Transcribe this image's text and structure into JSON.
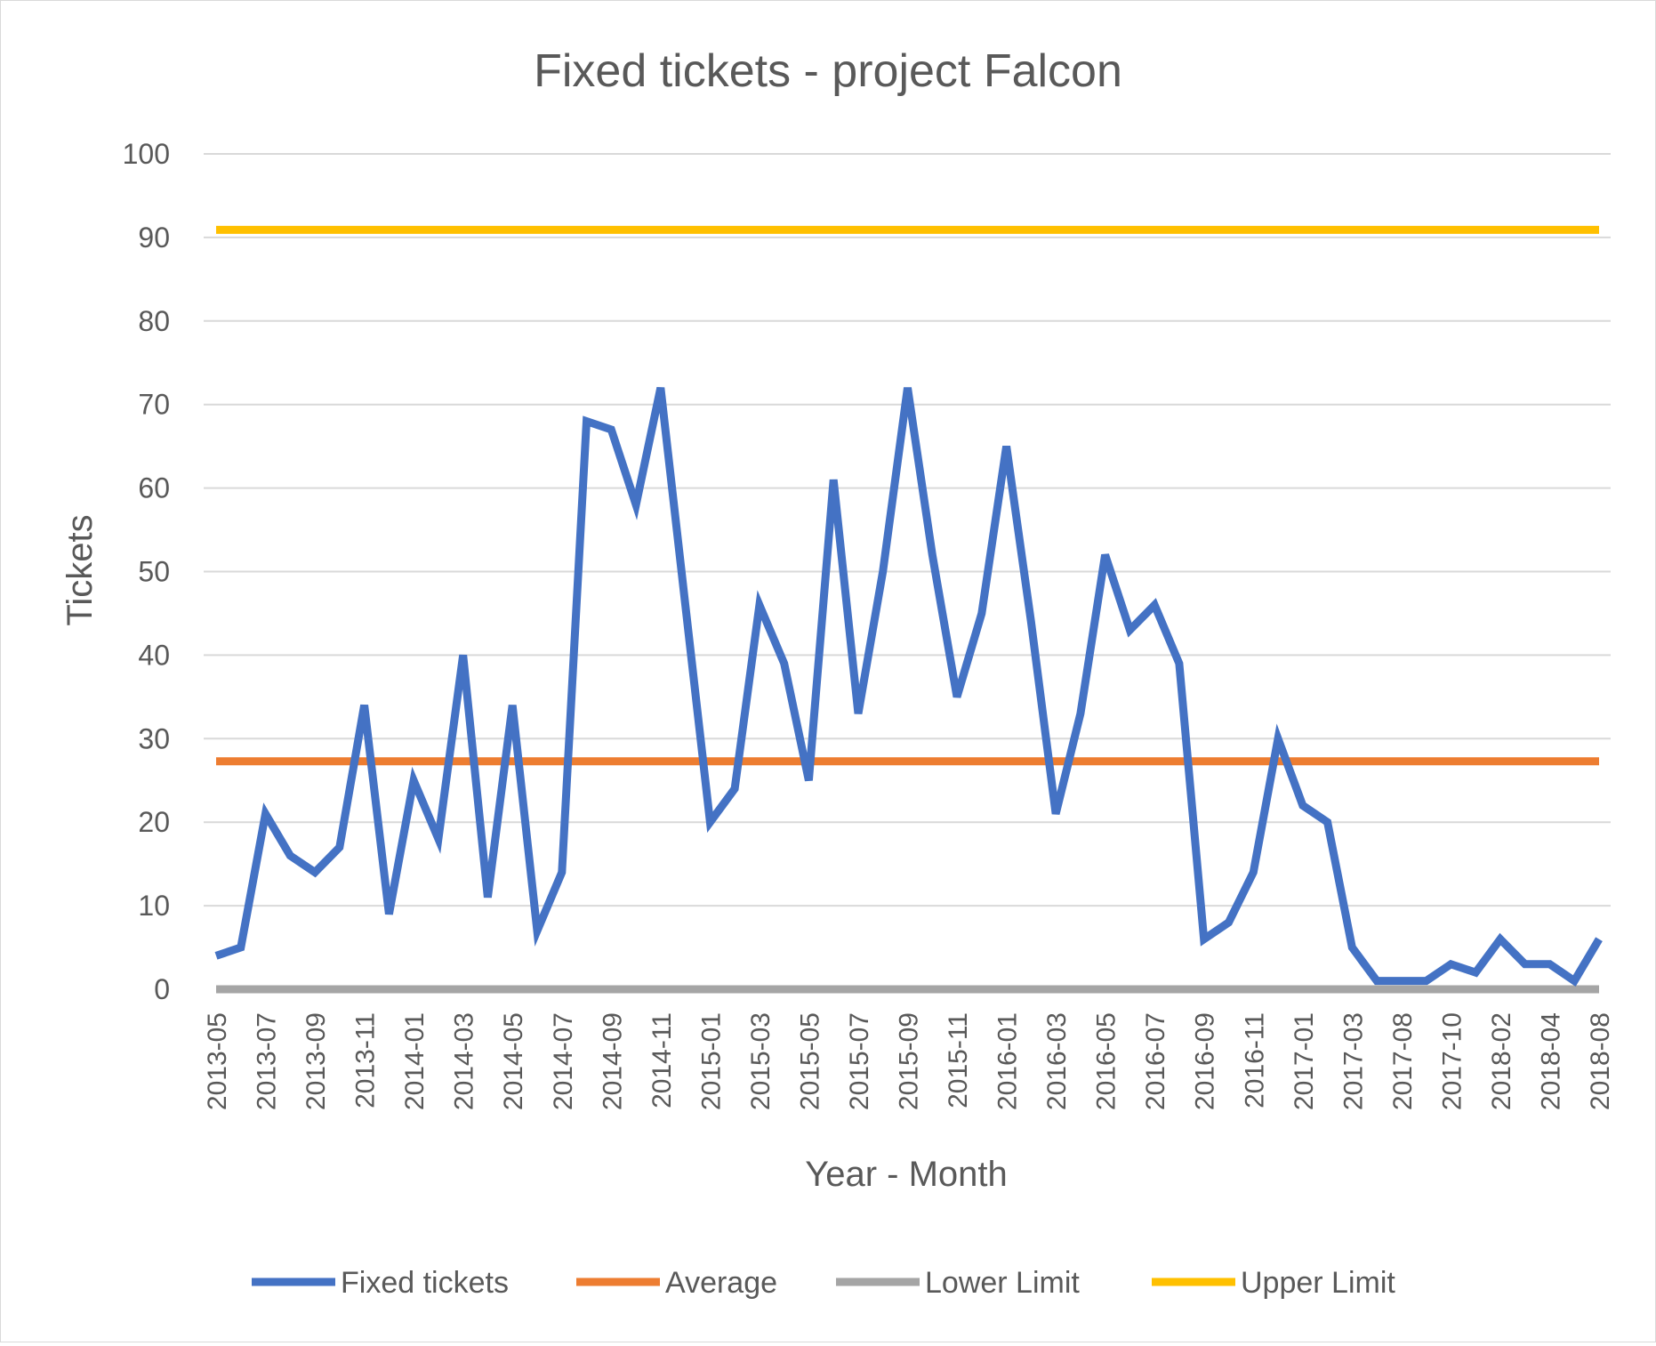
{
  "chart_data": {
    "type": "line",
    "title": "Fixed tickets - project Falcon",
    "xlabel": "Year - Month",
    "ylabel": "Tickets",
    "ylim": [
      0,
      100
    ],
    "yticks": [
      0,
      10,
      20,
      30,
      40,
      50,
      60,
      70,
      80,
      90,
      100
    ],
    "grid": true,
    "legend_position": "bottom",
    "x": [
      "2013-05",
      "2013-06",
      "2013-07",
      "2013-08",
      "2013-09",
      "2013-10",
      "2013-11",
      "2013-12",
      "2014-01",
      "2014-02",
      "2014-03",
      "2014-04",
      "2014-05",
      "2014-06",
      "2014-07",
      "2014-08",
      "2014-09",
      "2014-10",
      "2014-11",
      "2014-12",
      "2015-01",
      "2015-02",
      "2015-03",
      "2015-04",
      "2015-05",
      "2015-06",
      "2015-07",
      "2015-08",
      "2015-09",
      "2015-10",
      "2015-11",
      "2015-12",
      "2016-01",
      "2016-02",
      "2016-03",
      "2016-04",
      "2016-05",
      "2016-06",
      "2016-07",
      "2016-08",
      "2016-09",
      "2016-10",
      "2016-11",
      "2016-12",
      "2017-01",
      "2017-02",
      "2017-03",
      "2017-05",
      "2017-08",
      "2017-09",
      "2017-10",
      "2018-01",
      "2018-02",
      "2018-03",
      "2018-04",
      "2018-07",
      "2018-08"
    ],
    "x_tick_labels": [
      "2013-05",
      "2013-07",
      "2013-09",
      "2013-11",
      "2014-01",
      "2014-03",
      "2014-05",
      "2014-07",
      "2014-09",
      "2014-11",
      "2015-01",
      "2015-03",
      "2015-05",
      "2015-07",
      "2015-09",
      "2015-11",
      "2016-01",
      "2016-03",
      "2016-05",
      "2016-07",
      "2016-09",
      "2016-11",
      "2017-01",
      "2017-03",
      "2017-08",
      "2017-10",
      "2018-02",
      "2018-04",
      "2018-08"
    ],
    "series": [
      {
        "name": "Fixed tickets",
        "color": "#4472c4",
        "values": [
          4,
          5,
          21,
          16,
          14,
          17,
          34,
          9,
          25,
          18,
          40,
          11,
          34,
          7,
          14,
          68,
          67,
          58,
          72,
          46,
          20,
          24,
          46,
          39,
          25,
          61,
          33,
          50,
          72,
          52,
          35,
          45,
          65,
          44,
          21,
          33,
          52,
          43,
          46,
          39,
          6,
          8,
          14,
          30,
          22,
          20,
          5,
          1,
          1,
          1,
          3,
          2,
          6,
          3,
          3,
          1,
          6
        ]
      },
      {
        "name": "Average",
        "color": "#ed7d31",
        "values": "constant",
        "constant": 27.3
      },
      {
        "name": "Lower Limit",
        "color": "#a5a5a5",
        "values": "constant",
        "constant": 0
      },
      {
        "name": "Upper Limit",
        "color": "#ffc000",
        "values": "constant",
        "constant": 90.9
      }
    ]
  }
}
